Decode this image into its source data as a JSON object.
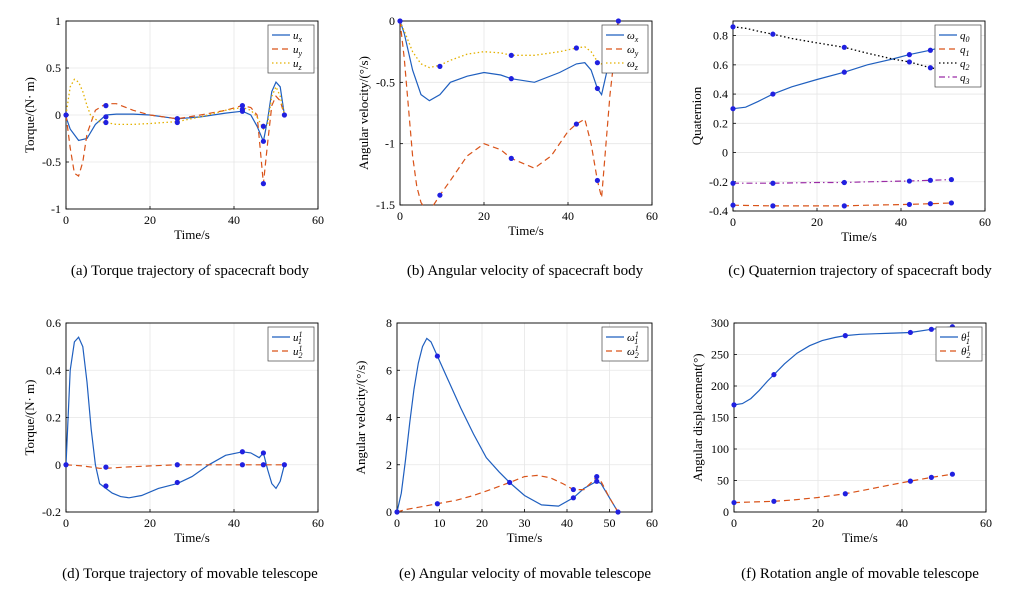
{
  "chart_data": [
    {
      "type": "line",
      "caption": "(a)  Torque trajectory of spacecraft body",
      "xlabel": "Time/s",
      "ylabel": "Torque/(N· m)",
      "xlim": [
        0,
        60
      ],
      "ylim": [
        -1,
        1
      ],
      "xticks": [
        "0",
        "20",
        "40",
        "60"
      ],
      "yticks": [
        "-1",
        "-0.5",
        "0",
        "0.5",
        "1"
      ],
      "grid": true,
      "legend": "top-right",
      "colors": {
        "u_x": "#1f5fbf",
        "u_y": "#d95319",
        "u_z": "#e3b100",
        "marker": "#2020e0"
      },
      "series": [
        {
          "name": "u",
          "sub": "x",
          "style": "solid",
          "color": "#1f5fbf",
          "x": [
            0,
            1,
            3,
            5,
            7,
            9.5,
            12,
            16,
            20,
            26.5,
            32,
            38,
            42,
            44,
            45.5,
            47,
            48,
            49,
            50,
            51,
            52
          ],
          "y": [
            -0.02,
            -0.15,
            -0.27,
            -0.25,
            -0.1,
            0.0,
            0.01,
            0.01,
            0.0,
            -0.04,
            -0.02,
            0.02,
            0.04,
            0.0,
            -0.12,
            -0.28,
            -0.05,
            0.25,
            0.35,
            0.3,
            0.0
          ]
        },
        {
          "name": "u",
          "sub": "y",
          "style": "dashed",
          "color": "#d95319",
          "x": [
            0,
            1,
            2,
            3,
            4,
            5,
            7,
            9.5,
            12,
            16,
            20,
            26.5,
            32,
            38,
            42,
            44,
            45.5,
            47,
            48,
            49,
            50,
            51,
            52
          ],
          "y": [
            0.0,
            -0.35,
            -0.62,
            -0.65,
            -0.5,
            -0.2,
            0.05,
            0.12,
            0.12,
            0.05,
            0.0,
            -0.04,
            0.0,
            0.05,
            0.1,
            0.08,
            0.0,
            -0.73,
            -0.3,
            0.1,
            0.2,
            0.15,
            0.0
          ]
        },
        {
          "name": "u",
          "sub": "z",
          "style": "dotted",
          "color": "#e3b100",
          "x": [
            0,
            1,
            2,
            3,
            4,
            5,
            6,
            8,
            9.5,
            12,
            16,
            20,
            26.5,
            32,
            38,
            42,
            44,
            45.5,
            47,
            48,
            49,
            50,
            51,
            52
          ],
          "y": [
            0.0,
            0.3,
            0.38,
            0.35,
            0.25,
            0.1,
            -0.02,
            -0.07,
            -0.08,
            -0.1,
            -0.1,
            -0.09,
            -0.07,
            -0.02,
            0.05,
            0.08,
            0.05,
            -0.02,
            -0.15,
            -0.1,
            0.2,
            0.3,
            0.2,
            0.0
          ]
        }
      ],
      "markers": {
        "x": [
          0,
          9.5,
          9.5,
          9.5,
          26.5,
          26.5,
          26.5,
          42,
          42,
          42,
          47,
          47,
          47,
          52
        ],
        "y": [
          0.0,
          0.1,
          -0.02,
          -0.08,
          -0.04,
          -0.04,
          -0.08,
          0.1,
          0.06,
          0.04,
          -0.12,
          -0.28,
          -0.73,
          0.0
        ]
      }
    },
    {
      "type": "line",
      "caption": "(b)  Angular velocity of spacecraft body",
      "xlabel": "Time/s",
      "ylabel": "Angular velocity/(°/s)",
      "xlim": [
        0,
        60
      ],
      "ylim": [
        -1.5,
        0
      ],
      "xticks": [
        "0",
        "20",
        "40",
        "60"
      ],
      "yticks": [
        "-1.5",
        "-1",
        "-0.5",
        "0"
      ],
      "grid": true,
      "legend": "top-right",
      "colors": {
        "omega_x": "#1f5fbf",
        "omega_y": "#d95319",
        "omega_z": "#e3b100",
        "marker": "#2020e0"
      },
      "series": [
        {
          "name": "ω",
          "sub": "x",
          "style": "solid",
          "color": "#1f5fbf",
          "x": [
            0,
            1,
            3,
            5,
            7,
            9.5,
            12,
            16,
            20,
            24,
            26.5,
            32,
            38,
            42,
            44,
            45.5,
            47,
            48,
            50,
            52
          ],
          "y": [
            0.0,
            -0.1,
            -0.4,
            -0.6,
            -0.65,
            -0.6,
            -0.5,
            -0.45,
            -0.42,
            -0.44,
            -0.47,
            -0.5,
            -0.42,
            -0.35,
            -0.34,
            -0.4,
            -0.55,
            -0.6,
            -0.3,
            0.0
          ]
        },
        {
          "name": "ω",
          "sub": "y",
          "style": "dashed",
          "color": "#d95319",
          "x": [
            0,
            1,
            2,
            3,
            4,
            5,
            6,
            7,
            8,
            9.5,
            12,
            16,
            20,
            24,
            26.5,
            32,
            36,
            40,
            42,
            44,
            45.5,
            47,
            48,
            50,
            52
          ],
          "y": [
            0.0,
            -0.3,
            -0.7,
            -1.1,
            -1.35,
            -1.48,
            -1.53,
            -1.53,
            -1.5,
            -1.42,
            -1.3,
            -1.1,
            -1.0,
            -1.05,
            -1.12,
            -1.2,
            -1.1,
            -0.9,
            -0.84,
            -0.8,
            -1.0,
            -1.3,
            -1.44,
            -0.6,
            0.0
          ]
        },
        {
          "name": "ω",
          "sub": "z",
          "style": "dotted",
          "color": "#e3b100",
          "x": [
            0,
            1,
            3,
            5,
            7,
            9.5,
            12,
            16,
            20,
            24,
            26.5,
            32,
            38,
            42,
            44,
            45.5,
            47,
            48,
            50,
            52
          ],
          "y": [
            0.0,
            -0.08,
            -0.25,
            -0.35,
            -0.38,
            -0.36,
            -0.32,
            -0.27,
            -0.25,
            -0.26,
            -0.28,
            -0.28,
            -0.25,
            -0.22,
            -0.21,
            -0.25,
            -0.33,
            -0.35,
            -0.15,
            0.0
          ]
        }
      ],
      "markers": {
        "x": [
          0,
          9.5,
          9.5,
          26.5,
          26.5,
          26.5,
          42,
          42,
          47,
          47,
          47,
          52
        ],
        "y": [
          0.0,
          -0.37,
          -1.42,
          -0.28,
          -0.47,
          -1.12,
          -0.22,
          -0.84,
          -0.34,
          -0.55,
          -1.3,
          0.0
        ]
      }
    },
    {
      "type": "line",
      "caption": "(c)  Quaternion trajectory of spacecraft body",
      "xlabel": "Time/s",
      "ylabel": "Quaternion",
      "xlim": [
        0,
        60
      ],
      "ylim": [
        -0.4,
        0.9
      ],
      "xticks": [
        "0",
        "20",
        "40",
        "60"
      ],
      "yticks": [
        "-0.4",
        "-0.2",
        "0",
        "0.2",
        "0.4",
        "0.6",
        "0.8"
      ],
      "grid": true,
      "legend": "top-right",
      "colors": {
        "q_0": "#1f5fbf",
        "q_1": "#d95319",
        "q_2": "#000000",
        "q_3": "#9b2ca6",
        "marker": "#2020e0"
      },
      "series": [
        {
          "name": "q",
          "sub": "0",
          "style": "solid",
          "color": "#1f5fbf",
          "x": [
            0,
            3,
            6,
            9.5,
            14,
            20,
            26.5,
            32,
            38,
            42,
            47,
            52
          ],
          "y": [
            0.3,
            0.31,
            0.35,
            0.4,
            0.45,
            0.5,
            0.55,
            0.6,
            0.64,
            0.67,
            0.7,
            0.74
          ]
        },
        {
          "name": "q",
          "sub": "1",
          "style": "dashed",
          "color": "#d95319",
          "x": [
            0,
            9.5,
            20,
            26.5,
            32,
            42,
            47,
            52
          ],
          "y": [
            -0.36,
            -0.365,
            -0.365,
            -0.365,
            -0.36,
            -0.355,
            -0.35,
            -0.345
          ]
        },
        {
          "name": "q",
          "sub": "2",
          "style": "dotted",
          "color": "#000000",
          "x": [
            0,
            3,
            6,
            9.5,
            14,
            20,
            26.5,
            32,
            38,
            42,
            47,
            52
          ],
          "y": [
            0.86,
            0.85,
            0.83,
            0.81,
            0.78,
            0.75,
            0.72,
            0.68,
            0.64,
            0.62,
            0.58,
            0.56
          ]
        },
        {
          "name": "q",
          "sub": "3",
          "style": "dashdot",
          "color": "#9b2ca6",
          "x": [
            0,
            9.5,
            20,
            26.5,
            32,
            42,
            47,
            52
          ],
          "y": [
            -0.21,
            -0.21,
            -0.205,
            -0.205,
            -0.2,
            -0.195,
            -0.19,
            -0.185
          ]
        }
      ],
      "markers": {
        "x": [
          0,
          0,
          0,
          0,
          9.5,
          9.5,
          9.5,
          9.5,
          26.5,
          26.5,
          26.5,
          26.5,
          42,
          42,
          42,
          42,
          47,
          47,
          47,
          47,
          52,
          52,
          52,
          52
        ],
        "y": [
          0.86,
          0.3,
          -0.21,
          -0.36,
          0.81,
          0.4,
          -0.21,
          -0.365,
          0.72,
          0.55,
          -0.205,
          -0.365,
          0.67,
          0.62,
          -0.195,
          -0.355,
          0.7,
          0.58,
          -0.19,
          -0.35,
          0.74,
          0.56,
          -0.185,
          -0.345
        ]
      }
    },
    {
      "type": "line",
      "caption": "(d)  Torque trajectory of movable telescope",
      "xlabel": "Time/s",
      "ylabel": "Torque/(N· m)",
      "xlim": [
        0,
        60
      ],
      "ylim": [
        -0.2,
        0.6
      ],
      "xticks": [
        "0",
        "20",
        "40",
        "60"
      ],
      "yticks": [
        "-0.2",
        "0",
        "0.2",
        "0.4",
        "0.6"
      ],
      "grid": true,
      "legend": "top-right",
      "colors": {
        "u_1": "#1f5fbf",
        "u_2": "#d95319",
        "marker": "#2020e0"
      },
      "series": [
        {
          "name": "u",
          "sub": "1",
          "sup": "1",
          "style": "solid",
          "color": "#1f5fbf",
          "x": [
            0,
            0.5,
            1,
            2,
            3,
            4,
            5,
            6,
            7,
            8,
            9.5,
            11,
            13,
            15,
            18,
            22,
            26.5,
            30,
            34,
            38,
            42,
            44,
            46,
            47,
            48,
            49,
            50,
            51,
            52
          ],
          "y": [
            0.0,
            0.2,
            0.4,
            0.52,
            0.54,
            0.5,
            0.35,
            0.15,
            0.0,
            -0.08,
            -0.1,
            -0.12,
            -0.135,
            -0.14,
            -0.13,
            -0.1,
            -0.08,
            -0.05,
            0.0,
            0.04,
            0.055,
            0.05,
            0.03,
            0.05,
            -0.02,
            -0.08,
            -0.1,
            -0.07,
            0.0
          ]
        },
        {
          "name": "u",
          "sub": "2",
          "sup": "1",
          "style": "dashed",
          "color": "#d95319",
          "x": [
            0,
            4,
            8,
            9.5,
            14,
            20,
            26.5,
            32,
            38,
            42,
            47,
            52
          ],
          "y": [
            0.0,
            -0.005,
            -0.015,
            -0.015,
            -0.01,
            -0.005,
            0.0,
            0.0,
            0.0,
            0.0,
            0.0,
            0.0
          ]
        }
      ],
      "markers": {
        "x": [
          0,
          9.5,
          9.5,
          26.5,
          26.5,
          42,
          42,
          47,
          47,
          52
        ],
        "y": [
          0.0,
          -0.01,
          -0.09,
          0.0,
          -0.075,
          0.055,
          0.0,
          0.05,
          0.0,
          0.0
        ]
      }
    },
    {
      "type": "line",
      "caption": "(e)  Angular velocity of movable telescope",
      "xlabel": "Time/s",
      "ylabel": "Angular velocity/(°/s)",
      "xlim": [
        0,
        60
      ],
      "ylim": [
        0,
        8
      ],
      "xticks": [
        "0",
        "10",
        "20",
        "30",
        "40",
        "50",
        "60"
      ],
      "yticks": [
        "0",
        "2",
        "4",
        "6",
        "8"
      ],
      "grid": true,
      "legend": "top-right",
      "colors": {
        "omega_1": "#1f5fbf",
        "omega_2": "#d95319",
        "marker": "#2020e0"
      },
      "series": [
        {
          "name": "ω",
          "sub": "1",
          "sup": "1",
          "style": "solid",
          "color": "#1f5fbf",
          "x": [
            0,
            1,
            2,
            3,
            4,
            5,
            6,
            7,
            8,
            9.5,
            12,
            15,
            18,
            21,
            24,
            26.5,
            30,
            34,
            38,
            41.5,
            44,
            46,
            47,
            48,
            50,
            52
          ],
          "y": [
            0.0,
            0.8,
            2.2,
            3.8,
            5.2,
            6.3,
            7.0,
            7.35,
            7.2,
            6.6,
            5.6,
            4.4,
            3.3,
            2.3,
            1.7,
            1.25,
            0.7,
            0.3,
            0.25,
            0.6,
            1.0,
            1.2,
            1.3,
            1.2,
            0.6,
            0.0
          ]
        },
        {
          "name": "ω",
          "sub": "2",
          "sup": "1",
          "style": "dashed",
          "color": "#d95319",
          "x": [
            0,
            2,
            5,
            9.5,
            14,
            18,
            22,
            26.5,
            30,
            33,
            36,
            39,
            41.5,
            44,
            46,
            47,
            48,
            50,
            52
          ],
          "y": [
            0.0,
            0.1,
            0.2,
            0.35,
            0.5,
            0.7,
            0.95,
            1.25,
            1.5,
            1.55,
            1.45,
            1.2,
            0.95,
            0.95,
            1.3,
            1.5,
            1.3,
            0.6,
            0.0
          ]
        }
      ],
      "markers": {
        "x": [
          0,
          9.5,
          9.5,
          26.5,
          41.5,
          41.5,
          47,
          47,
          52
        ],
        "y": [
          0.0,
          6.6,
          0.35,
          1.25,
          0.6,
          0.95,
          1.3,
          1.5,
          0.0
        ]
      }
    },
    {
      "type": "line",
      "caption": "(f)  Rotation angle of movable telescope",
      "xlabel": "Time/s",
      "ylabel": "Angular displacement(°)",
      "xlim": [
        0,
        60
      ],
      "ylim": [
        0,
        300
      ],
      "xticks": [
        "0",
        "20",
        "40",
        "60"
      ],
      "yticks": [
        "0",
        "50",
        "100",
        "150",
        "200",
        "250",
        "300"
      ],
      "grid": true,
      "legend": "top-right",
      "colors": {
        "theta_1": "#1f5fbf",
        "theta_2": "#d95319",
        "marker": "#2020e0"
      },
      "series": [
        {
          "name": "θ",
          "sub": "1",
          "sup": "1",
          "style": "solid",
          "color": "#1f5fbf",
          "x": [
            0,
            2,
            4,
            6,
            8,
            9.5,
            12,
            15,
            18,
            21,
            24,
            26.5,
            30,
            34,
            38,
            42,
            47,
            52
          ],
          "y": [
            170,
            172,
            180,
            193,
            208,
            218,
            235,
            252,
            264,
            272,
            277,
            280,
            282,
            283,
            284,
            285,
            290,
            294
          ]
        },
        {
          "name": "θ",
          "sub": "2",
          "sup": "1",
          "style": "dashed",
          "color": "#d95319",
          "x": [
            0,
            5,
            9.5,
            14,
            20,
            26.5,
            32,
            38,
            42,
            47,
            52
          ],
          "y": [
            15,
            16,
            17,
            19,
            23,
            29,
            36,
            44,
            49,
            55,
            60
          ]
        }
      ],
      "markers": {
        "x": [
          0,
          0,
          9.5,
          9.5,
          26.5,
          26.5,
          42,
          42,
          47,
          47,
          52,
          52
        ],
        "y": [
          170,
          15,
          218,
          17,
          280,
          29,
          285,
          49,
          290,
          55,
          294,
          60
        ]
      }
    }
  ]
}
